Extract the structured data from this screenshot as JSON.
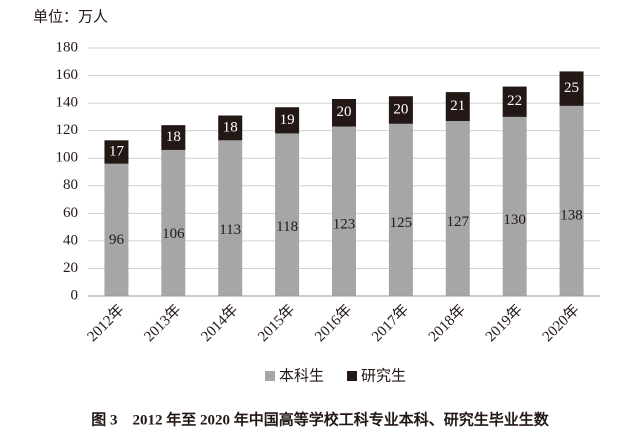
{
  "chart_data": {
    "type": "bar",
    "stacked": true,
    "title": "图 3　2012 年至 2020 年中国高等学校工科专业本科、研究生毕业生数",
    "y_label": "单位：万人",
    "categories": [
      "2012年",
      "2013年",
      "2014年",
      "2015年",
      "2016年",
      "2017年",
      "2018年",
      "2019年",
      "2020年"
    ],
    "series": [
      {
        "name": "本科生",
        "color": "#a6a6a6",
        "values": [
          96,
          106,
          113,
          118,
          123,
          125,
          127,
          130,
          138
        ]
      },
      {
        "name": "研究生",
        "color": "#231815",
        "values": [
          17,
          18,
          18,
          19,
          20,
          20,
          21,
          22,
          25
        ]
      }
    ],
    "ylim": [
      0,
      180
    ],
    "yticks": [
      0,
      20,
      40,
      60,
      80,
      100,
      120,
      140,
      160,
      180
    ],
    "grid": true,
    "legend": "bottom"
  }
}
